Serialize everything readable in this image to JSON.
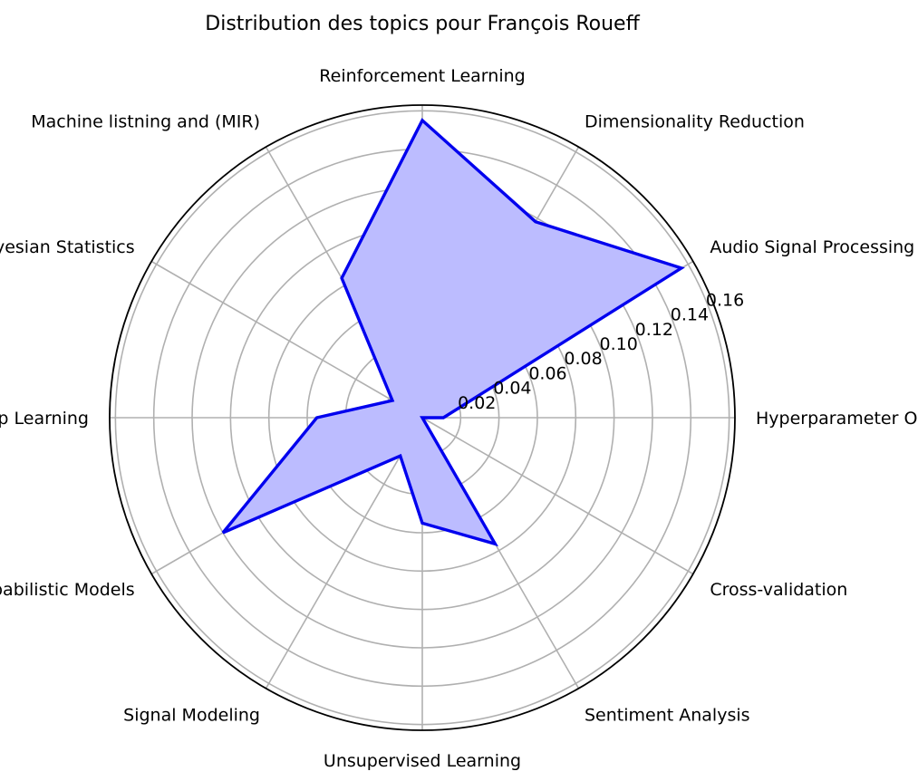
{
  "chart_data": {
    "type": "radar",
    "title": "Distribution des topics pour François Roueff",
    "categories": [
      "Hyperparameter Optimization",
      "Audio Signal Processing",
      "Dimensionality Reduction",
      "Reinforcement Learning",
      "Machine listning and (MIR)",
      "Bayesian Statistics",
      "Deep Learning",
      "Probabilistic Models",
      "Signal Modeling",
      "Unsupervised Learning",
      "Sentiment Analysis",
      "Cross-validation"
    ],
    "values": [
      0.011,
      0.156,
      0.118,
      0.155,
      0.084,
      0.018,
      0.055,
      0.12,
      0.023,
      0.055,
      0.076,
      0.0
    ],
    "r_ticks": [
      0.02,
      0.04,
      0.06,
      0.08,
      0.1,
      0.12,
      0.14,
      0.16
    ],
    "r_tick_labels": [
      "0.02",
      "0.04",
      "0.06",
      "0.08",
      "0.10",
      "0.12",
      "0.14",
      "0.16"
    ],
    "rmax": 0.163,
    "grid": true,
    "colors": {
      "line": "#0000ee",
      "fill": "#bcbcff",
      "grid": "#b0b0b0",
      "outline": "#000000"
    }
  }
}
